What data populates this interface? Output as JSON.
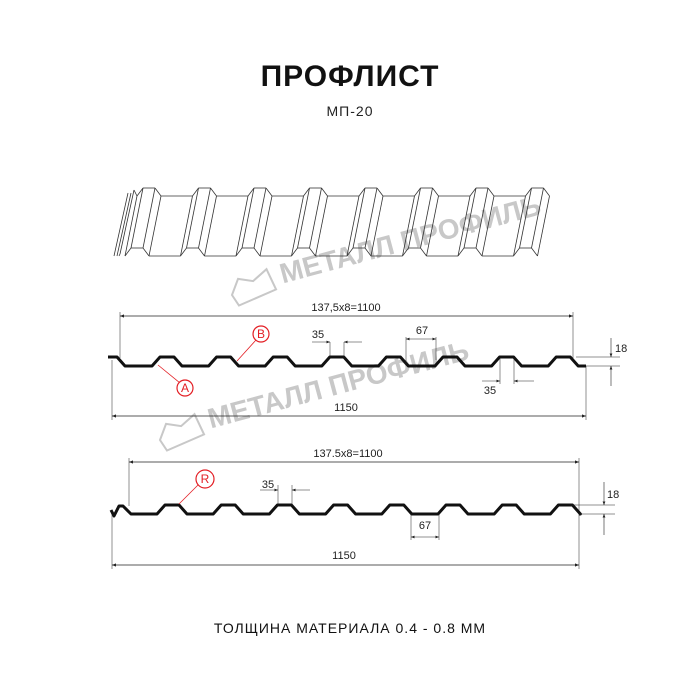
{
  "header": {
    "title": "ПРОФЛИСТ",
    "subtitle": "МП-20"
  },
  "watermark": {
    "text": "МЕТАЛЛ ПРОФИЛЬ"
  },
  "profile_top": {
    "pitch_label": "137,5x8=1100",
    "width_label": "1150",
    "crest_label": "35",
    "crest_label_2": "35",
    "valley_label": "67",
    "height_label": "18",
    "marker_a": "A",
    "marker_b": "B"
  },
  "profile_bottom": {
    "pitch_label": "137.5x8=1100",
    "width_label": "1150",
    "crest_label": "35",
    "valley_label": "67",
    "height_label": "18",
    "marker_r": "R"
  },
  "footer": {
    "thickness": "ТОЛЩИНА МАТЕРИАЛА 0.4 - 0.8 ММ"
  },
  "colors": {
    "line": "#111111",
    "marker": "#e31e24",
    "watermark": "#c8c8c8"
  }
}
